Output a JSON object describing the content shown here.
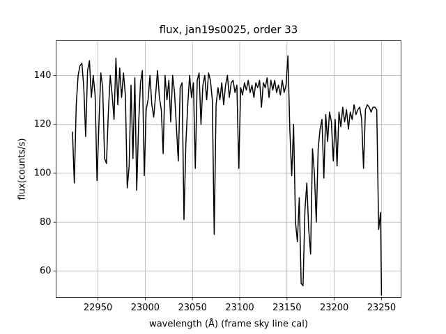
{
  "chart_data": {
    "type": "line",
    "title": "flux, jan19s0025, order 33",
    "x_label": "wavelength (Å) (frame sky line cal)",
    "y_label": "flux(counts/s)",
    "xlim": [
      22905.7,
      23270.7
    ],
    "ylim": [
      49.2,
      154.2
    ],
    "xticks": [
      22950,
      23000,
      23050,
      23100,
      23150,
      23200,
      23250
    ],
    "yticks": [
      60,
      80,
      100,
      120,
      140
    ],
    "grid": true,
    "color": "#000000",
    "x": [
      22923,
      22925,
      22927,
      22929,
      22931,
      22933,
      22935,
      22937,
      22939,
      22941,
      22943,
      22945,
      22947,
      22949,
      22951,
      22953,
      22955,
      22957,
      22959,
      22961,
      22963,
      22965,
      22967,
      22969,
      22971,
      22973,
      22975,
      22977,
      22979,
      22981,
      22983,
      22985,
      22987,
      22989,
      22991,
      22993,
      22995,
      22997,
      22999,
      23001,
      23003,
      23005,
      23007,
      23009,
      23011,
      23013,
      23015,
      23017,
      23019,
      23021,
      23023,
      23025,
      23027,
      23029,
      23031,
      23033,
      23035,
      23037,
      23039,
      23041,
      23043,
      23045,
      23047,
      23049,
      23051,
      23053,
      23055,
      23057,
      23059,
      23061,
      23063,
      23065,
      23067,
      23069,
      23071,
      23073,
      23075,
      23077,
      23079,
      23081,
      23083,
      23085,
      23087,
      23089,
      23091,
      23093,
      23095,
      23097,
      23099,
      23101,
      23103,
      23105,
      23107,
      23109,
      23111,
      23113,
      23115,
      23117,
      23119,
      23121,
      23123,
      23125,
      23127,
      23129,
      23131,
      23133,
      23135,
      23137,
      23139,
      23141,
      23143,
      23145,
      23147,
      23149,
      23151,
      23153,
      23155,
      23157,
      23159,
      23161,
      23163,
      23165,
      23167,
      23169,
      23171,
      23173,
      23175,
      23177,
      23179,
      23181,
      23183,
      23185,
      23187,
      23189,
      23191,
      23193,
      23195,
      23197,
      23199,
      23201,
      23203,
      23205,
      23207,
      23209,
      23211,
      23213,
      23215,
      23217,
      23219,
      23221,
      23223,
      23225,
      23227,
      23229,
      23231,
      23233,
      23235,
      23237,
      23239,
      23241,
      23243,
      23245,
      23247,
      23249,
      23250
    ],
    "values": [
      117,
      96,
      128,
      140,
      144,
      145,
      135,
      115,
      142,
      146,
      131,
      140,
      132,
      97,
      120,
      141,
      135,
      106,
      104,
      125,
      140,
      132,
      122,
      147,
      128,
      143,
      131,
      141,
      132,
      94,
      103,
      136,
      106,
      139,
      93,
      120,
      137,
      142,
      99,
      126,
      130,
      140,
      128,
      123,
      132,
      142,
      131,
      126,
      108,
      140,
      130,
      138,
      121,
      140,
      133,
      119,
      105,
      135,
      137,
      81,
      112,
      128,
      140,
      131,
      137,
      102,
      138,
      141,
      120,
      136,
      140,
      130,
      141,
      138,
      130,
      75,
      128,
      135,
      130,
      137,
      128,
      136,
      140,
      131,
      137,
      138,
      133,
      136,
      102,
      135,
      132,
      137,
      134,
      138,
      133,
      136,
      131,
      137,
      135,
      138,
      127,
      137,
      135,
      139,
      131,
      138,
      134,
      138,
      133,
      136,
      132,
      138,
      133,
      136,
      148,
      118,
      99,
      120,
      80,
      72,
      90,
      55,
      54,
      85,
      96,
      77,
      67,
      110,
      100,
      80,
      110,
      118,
      122,
      98,
      124,
      113,
      125,
      121,
      105,
      122,
      103,
      125,
      119,
      127,
      121,
      126,
      118,
      125,
      122,
      128,
      124,
      126,
      127,
      122,
      102,
      126,
      128,
      127,
      125,
      127,
      127,
      126,
      77,
      84,
      50
    ]
  }
}
